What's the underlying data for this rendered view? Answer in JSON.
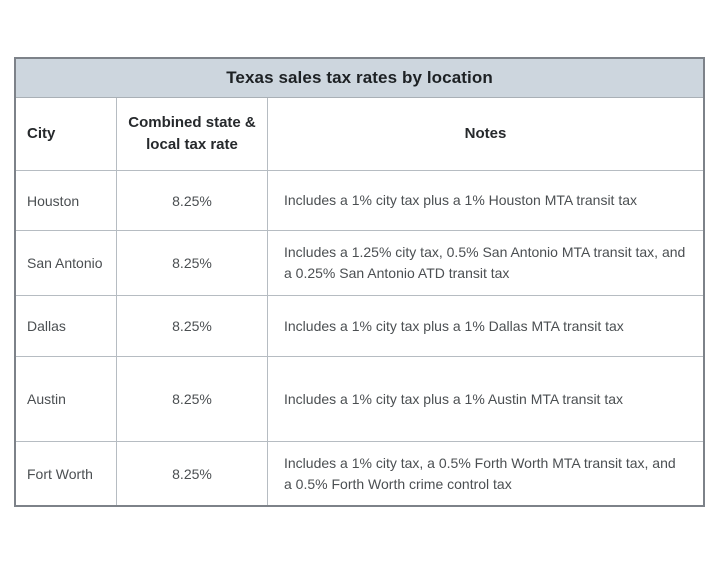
{
  "chart_data": {
    "type": "table",
    "title": "Texas sales tax rates by location",
    "columns": [
      "City",
      "Combined state & local tax rate",
      "Notes"
    ],
    "rows": [
      {
        "city": "Houston",
        "rate": "8.25%",
        "notes": "Includes a 1% city tax plus a 1% Houston MTA transit tax"
      },
      {
        "city": "San Antonio",
        "rate": "8.25%",
        "notes": "Includes a 1.25% city tax, 0.5% San Antonio MTA transit tax, and a 0.25% San Antonio ATD transit tax"
      },
      {
        "city": "Dallas",
        "rate": "8.25%",
        "notes": "Includes a 1% city tax plus a 1% Dallas MTA transit tax"
      },
      {
        "city": "Austin",
        "rate": "8.25%",
        "notes": "Includes a 1% city tax plus a 1% Austin MTA transit tax"
      },
      {
        "city": "Fort Worth",
        "rate": "8.25%",
        "notes": "Includes a 1% city tax, a 0.5% Forth Worth MTA transit tax, and a 0.5% Forth Worth crime control tax"
      }
    ],
    "layout": {
      "legend": "none",
      "grid": "on"
    }
  },
  "colors": {
    "title_background": "#cdd6de",
    "outer_border": "#7d8289",
    "grid_line": "#b6bcc2",
    "title_text": "#1d2124",
    "header_text": "#26292c",
    "body_text": "#4b4f52",
    "page_background": "#ffffff"
  }
}
